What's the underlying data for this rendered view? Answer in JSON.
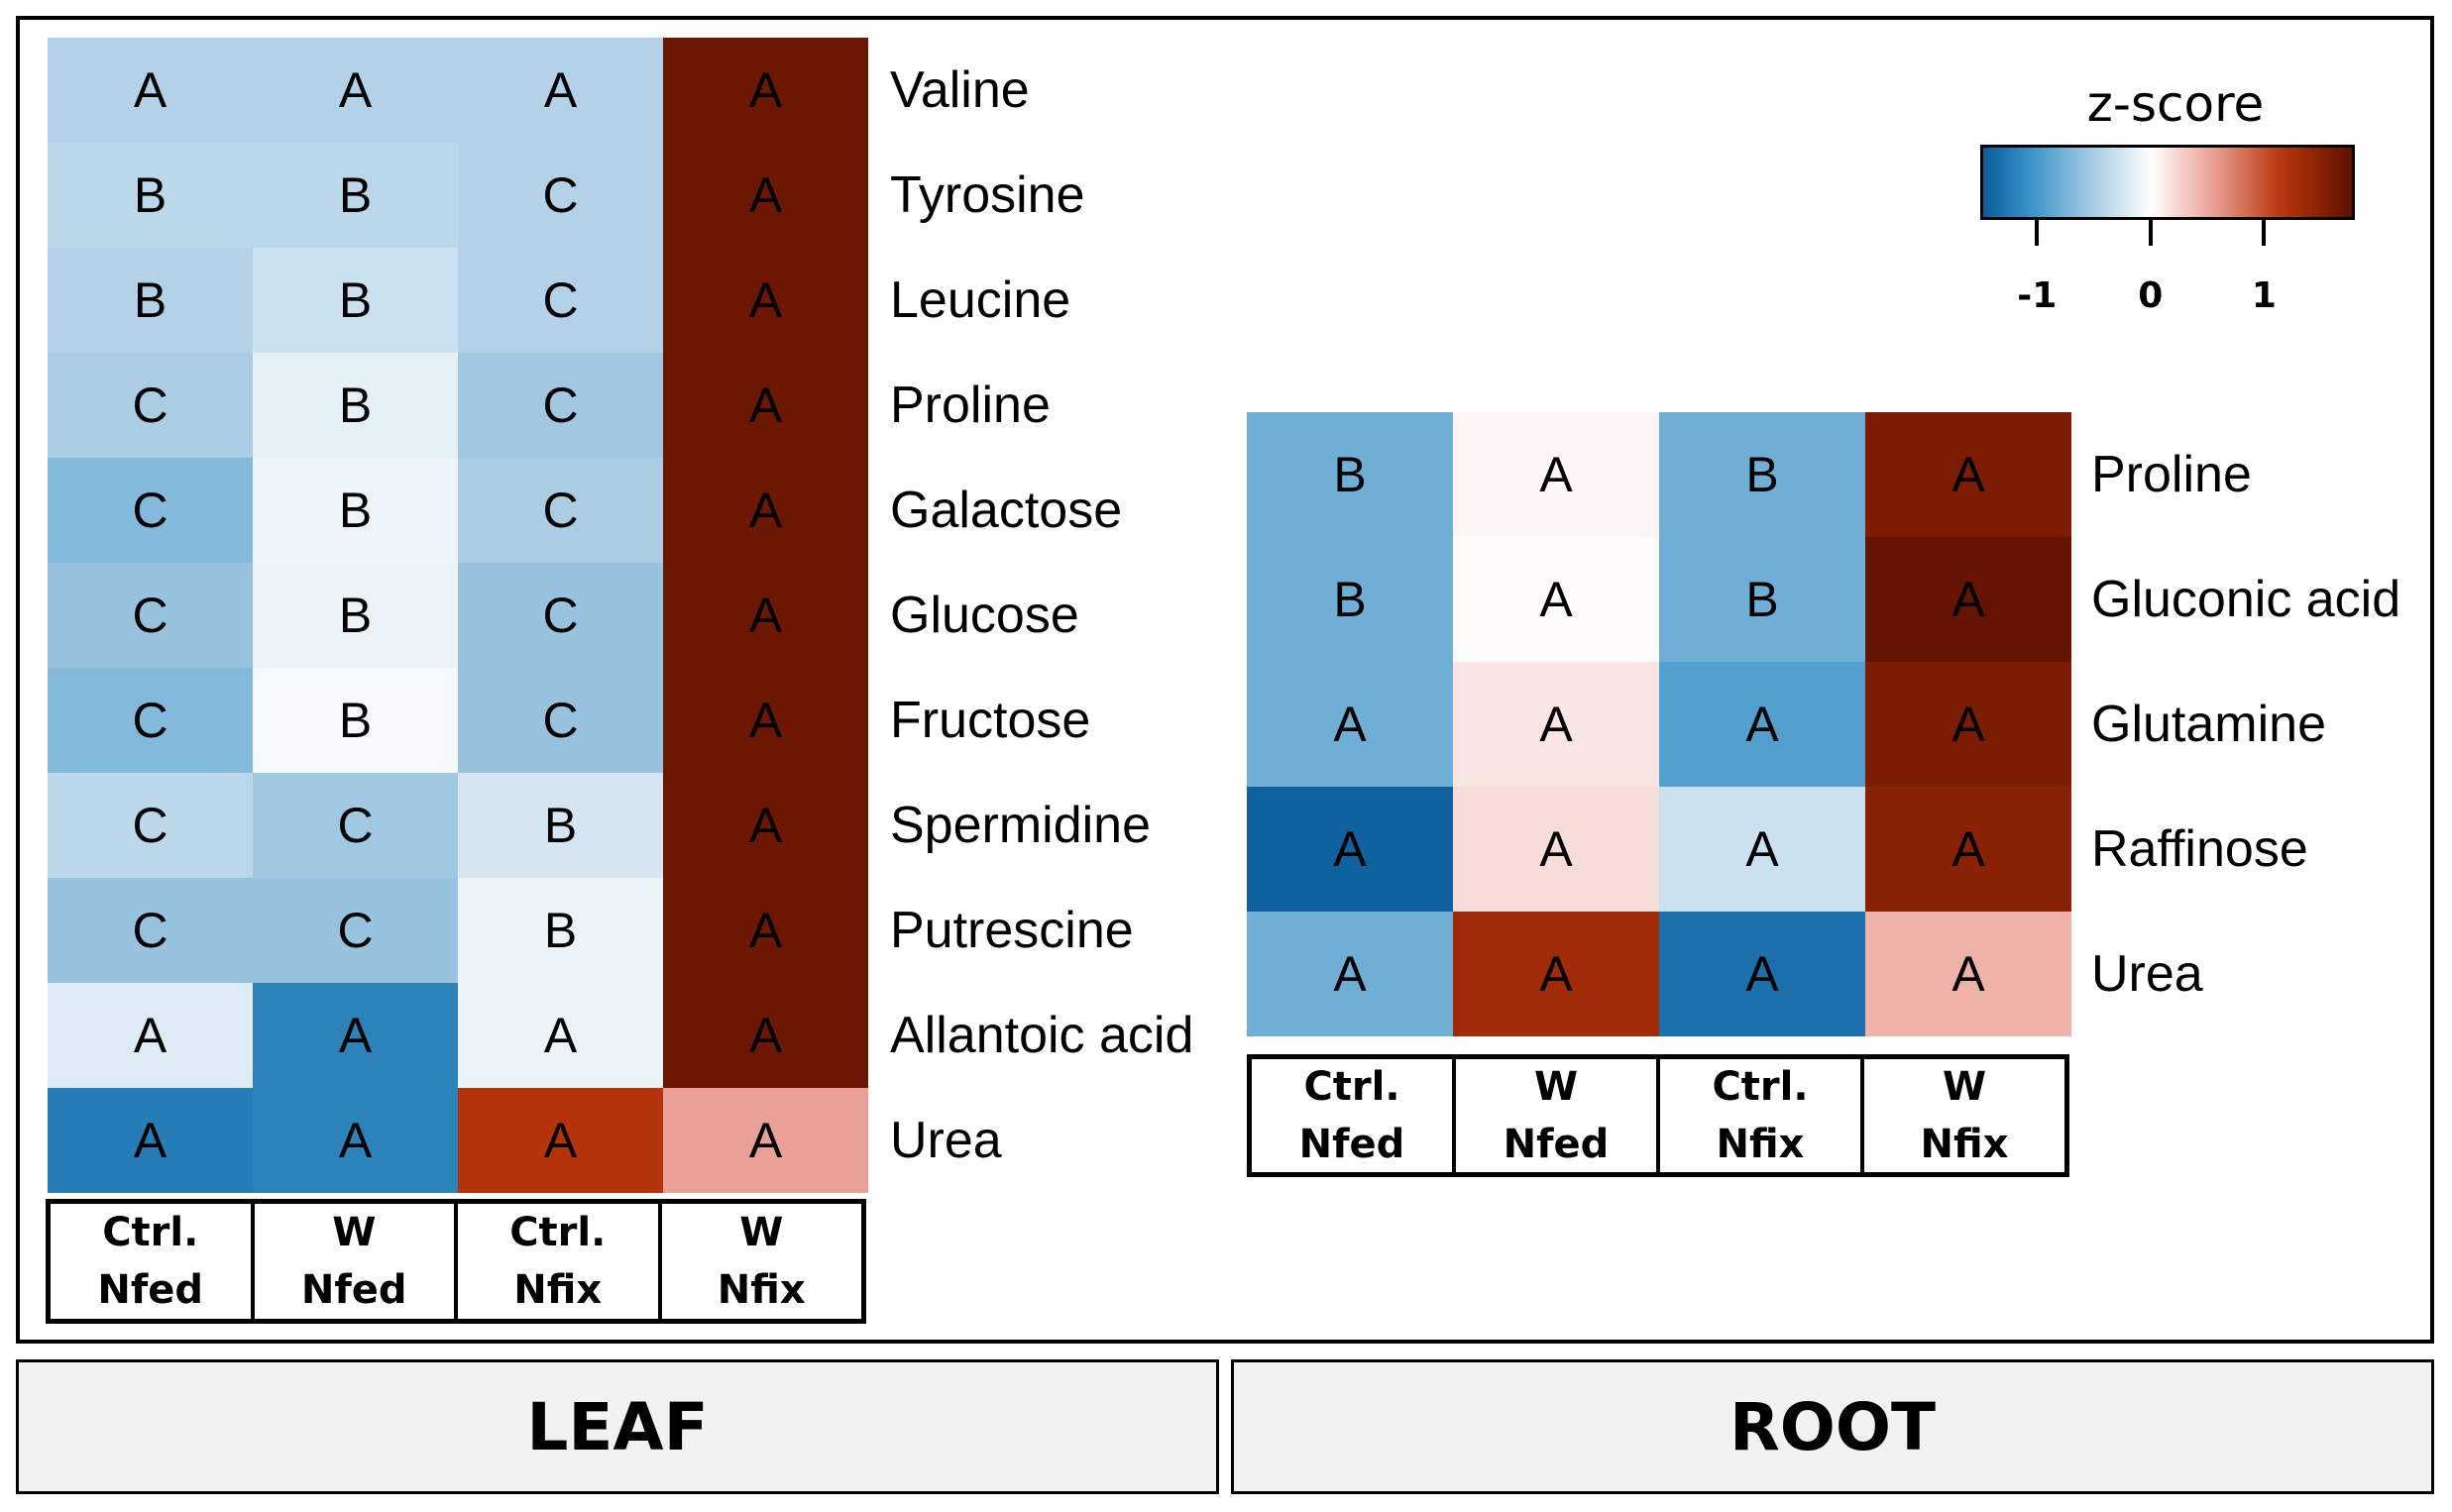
{
  "colorbar": {
    "title": "z-score",
    "ticks": [
      "-1",
      "0",
      "1"
    ],
    "tick_values": [
      -1,
      0,
      1
    ],
    "range": [
      -1.5,
      1.8
    ],
    "colors": {
      "low": "#08306b",
      "mid": "#ffffff",
      "high": "#5c0e00"
    }
  },
  "panels": {
    "leaf": "LEAF",
    "root": "ROOT"
  },
  "chart_data": [
    {
      "type": "heatmap",
      "panel": "LEAF",
      "columns": [
        {
          "line1": "Ctrl.",
          "line2": "Nfed"
        },
        {
          "line1": "W",
          "line2": "Nfed"
        },
        {
          "line1": "Ctrl.",
          "line2": "Nfix"
        },
        {
          "line1": "W",
          "line2": "Nfix"
        }
      ],
      "rows": [
        "Valine",
        "Tyrosine",
        "Leucine",
        "Proline",
        "Galactose",
        "Glucose",
        "Fructose",
        "Spermidine",
        "Putrescine",
        "Allantoic acid",
        "Urea"
      ],
      "values": [
        [
          -0.45,
          -0.45,
          -0.45,
          1.7
        ],
        [
          -0.4,
          -0.4,
          -0.45,
          1.7
        ],
        [
          -0.45,
          -0.3,
          -0.45,
          1.7
        ],
        [
          -0.5,
          -0.15,
          -0.55,
          1.7
        ],
        [
          -0.7,
          -0.1,
          -0.5,
          1.7
        ],
        [
          -0.6,
          -0.12,
          -0.6,
          1.7
        ],
        [
          -0.7,
          -0.05,
          -0.6,
          1.7
        ],
        [
          -0.4,
          -0.55,
          -0.25,
          1.7
        ],
        [
          -0.6,
          -0.6,
          -0.12,
          1.7
        ],
        [
          -0.2,
          -1.2,
          -0.12,
          1.7
        ],
        [
          -1.25,
          -1.2,
          1.2,
          0.55
        ]
      ],
      "letters": [
        [
          "A",
          "A",
          "A",
          "A"
        ],
        [
          "B",
          "B",
          "C",
          "A"
        ],
        [
          "B",
          "B",
          "C",
          "A"
        ],
        [
          "C",
          "B",
          "C",
          "A"
        ],
        [
          "C",
          "B",
          "C",
          "A"
        ],
        [
          "C",
          "B",
          "C",
          "A"
        ],
        [
          "C",
          "B",
          "C",
          "A"
        ],
        [
          "C",
          "C",
          "B",
          "A"
        ],
        [
          "C",
          "C",
          "B",
          "A"
        ],
        [
          "A",
          "A",
          "A",
          "A"
        ],
        [
          "A",
          "A",
          "A",
          "A"
        ]
      ]
    },
    {
      "type": "heatmap",
      "panel": "ROOT",
      "columns": [
        {
          "line1": "Ctrl.",
          "line2": "Nfed"
        },
        {
          "line1": "W",
          "line2": "Nfed"
        },
        {
          "line1": "Ctrl.",
          "line2": "Nfix"
        },
        {
          "line1": "W",
          "line2": "Nfix"
        }
      ],
      "rows": [
        "Proline",
        "Gluconic acid",
        "Glutamine",
        "Raffinose",
        "Urea"
      ],
      "values": [
        [
          -0.8,
          0.05,
          -0.8,
          1.6
        ],
        [
          -0.8,
          0.02,
          -0.8,
          1.75
        ],
        [
          -0.8,
          0.15,
          -0.95,
          1.6
        ],
        [
          -1.45,
          0.2,
          -0.3,
          1.5
        ],
        [
          -0.8,
          1.35,
          -1.35,
          0.45
        ]
      ],
      "letters": [
        [
          "B",
          "A",
          "B",
          "A"
        ],
        [
          "B",
          "A",
          "B",
          "A"
        ],
        [
          "A",
          "A",
          "A",
          "A"
        ],
        [
          "A",
          "A",
          "A",
          "A"
        ],
        [
          "A",
          "A",
          "A",
          "A"
        ]
      ]
    }
  ]
}
